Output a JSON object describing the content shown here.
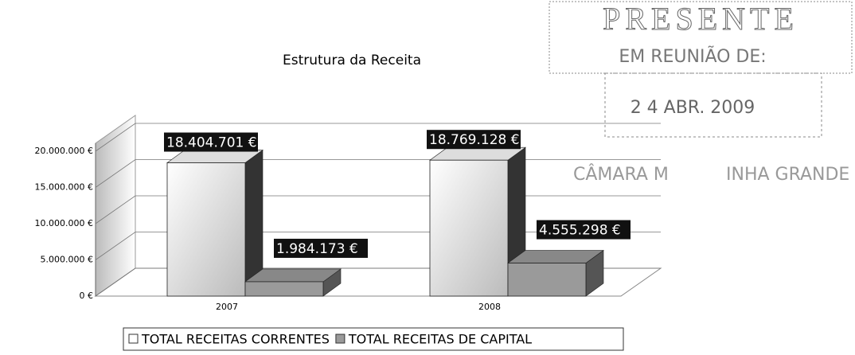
{
  "chart_data": {
    "type": "bar3d",
    "title": "Estrutura da Receita",
    "categories": [
      "2007",
      "2008"
    ],
    "series": [
      {
        "name": "TOTAL RECEITAS CORRENTES",
        "color": "#ffffff",
        "values": [
          18404701,
          18769128
        ],
        "value_labels": [
          "18.404.701 €",
          "18.769.128 €"
        ]
      },
      {
        "name": "TOTAL RECEITAS DE CAPITAL",
        "color": "#9a9a9a",
        "values": [
          1984173,
          4555298
        ],
        "value_labels": [
          "1.984.173 €",
          "4.555.298 €"
        ]
      }
    ],
    "ylim": [
      0,
      20000000
    ],
    "yticks": [
      {
        "value": 0,
        "label": "0 €"
      },
      {
        "value": 5000000,
        "label": "5.000.000 €"
      },
      {
        "value": 10000000,
        "label": "10.000.000 €"
      },
      {
        "value": 15000000,
        "label": "15.000.000 €"
      },
      {
        "value": 20000000,
        "label": "20.000.000 €"
      }
    ],
    "grid": true,
    "legend": "bottom",
    "annotations": [
      "PRESENTE",
      "EM REUNIÃO DE:",
      "2 4 ABR. 2009",
      "CÂMARA M",
      "INHA GRANDE"
    ]
  }
}
